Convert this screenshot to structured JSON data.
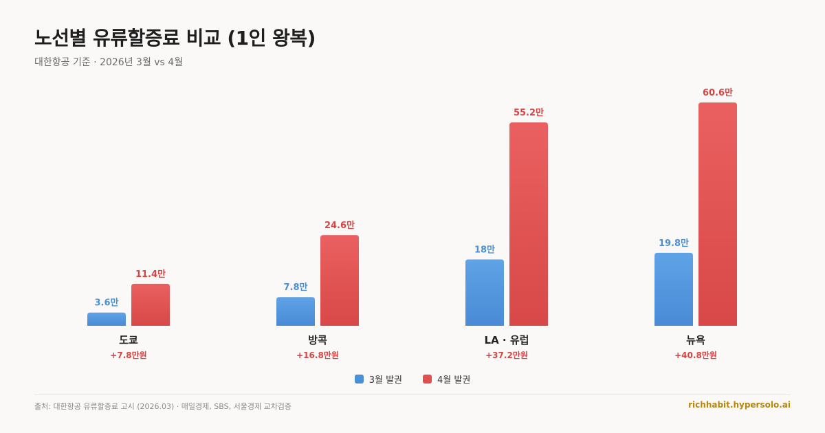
{
  "header": {
    "title": "노선별 유류할증료 비교 (1인 왕복)",
    "subtitle": "대한항공 기준 · 2026년 3월 vs 4월"
  },
  "chart_data": {
    "type": "bar",
    "categories": [
      "도쿄",
      "방콕",
      "LA · 유럽",
      "뉴욕"
    ],
    "series": [
      {
        "name": "3월 발권",
        "values": [
          3.6,
          7.8,
          18,
          19.8
        ],
        "labels": [
          "3.6만",
          "7.8만",
          "18만",
          "19.8만"
        ],
        "color": "#4a90d9"
      },
      {
        "name": "4월 발권",
        "values": [
          11.4,
          24.6,
          55.2,
          60.6
        ],
        "labels": [
          "11.4만",
          "24.6만",
          "55.2만",
          "60.6만"
        ],
        "color": "#e05050"
      }
    ],
    "differences": [
      "+7.8만원",
      "+16.8만원",
      "+37.2만원",
      "+40.8만원"
    ],
    "ylim": [
      0,
      65
    ],
    "grid": false,
    "legend_position": "bottom-center"
  },
  "colors": {
    "blue_light": "#5fa3e6",
    "blue_dark": "#4a8ad6",
    "red_light": "#ea6060",
    "red_dark": "#d84848",
    "blue_label": "#4a90d9",
    "red_label": "#d94444",
    "diff_label": "#d94444"
  },
  "legend": {
    "items": [
      {
        "label": "3월 발권",
        "color": "#4a90d9"
      },
      {
        "label": "4월 발권",
        "color": "#e05050"
      }
    ]
  },
  "footer": {
    "source": "출처: 대한항공 유류할증료 고시 (2026.03) · 매일경제, SBS, 서울경제 교차검증",
    "brand": "richhabit.hypersolo.ai"
  }
}
